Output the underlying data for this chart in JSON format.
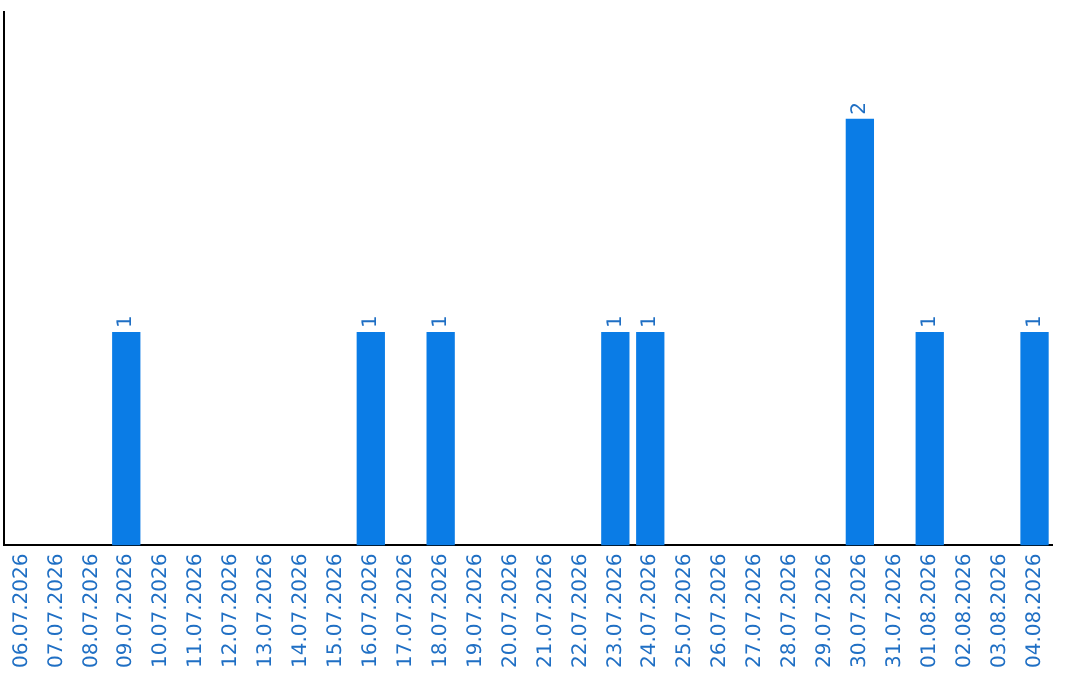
{
  "chart_data": {
    "type": "bar",
    "categories": [
      "06.07.2026",
      "07.07.2026",
      "08.07.2026",
      "09.07.2026",
      "10.07.2026",
      "11.07.2026",
      "12.07.2026",
      "13.07.2026",
      "14.07.2026",
      "15.07.2026",
      "16.07.2026",
      "17.07.2026",
      "18.07.2026",
      "19.07.2026",
      "20.07.2026",
      "21.07.2026",
      "22.07.2026",
      "23.07.2026",
      "24.07.2026",
      "25.07.2026",
      "26.07.2026",
      "27.07.2026",
      "28.07.2026",
      "29.07.2026",
      "30.07.2026",
      "31.07.2026",
      "01.08.2026",
      "02.08.2026",
      "03.08.2026",
      "04.08.2026"
    ],
    "values": [
      0,
      0,
      0,
      1,
      0,
      0,
      0,
      0,
      0,
      0,
      1,
      0,
      1,
      0,
      0,
      0,
      0,
      1,
      1,
      0,
      0,
      0,
      0,
      0,
      2,
      0,
      1,
      0,
      0,
      1
    ],
    "value_labels": [
      null,
      null,
      null,
      "1",
      null,
      null,
      null,
      null,
      null,
      null,
      "1",
      null,
      "1",
      null,
      null,
      null,
      null,
      "1",
      "1",
      null,
      null,
      null,
      null,
      null,
      "2",
      null,
      "1",
      null,
      null,
      "1"
    ],
    "color": "#0a7ce6",
    "grid": false,
    "legend": false
  }
}
